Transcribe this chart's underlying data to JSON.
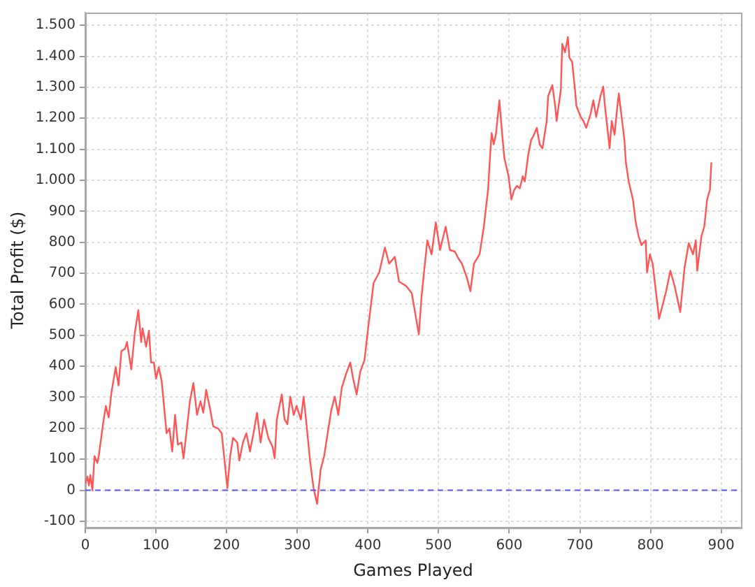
{
  "chart_data": {
    "type": "line",
    "xlabel": "Games Played",
    "ylabel": "Total Profit ($)",
    "x": [
      0,
      3,
      5,
      7,
      10,
      13,
      17,
      19,
      25,
      29,
      33,
      37,
      43,
      47,
      51,
      56,
      59,
      65,
      70,
      75,
      79,
      81,
      86,
      90,
      93,
      97,
      100,
      104,
      108,
      115,
      119,
      123,
      127,
      131,
      136,
      139,
      143,
      148,
      153,
      158,
      163,
      167,
      171,
      177,
      181,
      188,
      193,
      201,
      205,
      209,
      215,
      218,
      223,
      228,
      233,
      238,
      243,
      248,
      253,
      259,
      265,
      268,
      271,
      278,
      282,
      286,
      290,
      295,
      299,
      305,
      309,
      313,
      318,
      323,
      328,
      333,
      338,
      343,
      348,
      353,
      358,
      363,
      369,
      375,
      379,
      384,
      389,
      395,
      401,
      408,
      416,
      424,
      430,
      438,
      444,
      454,
      462,
      472,
      476,
      480,
      484,
      490,
      496,
      502,
      510,
      516,
      523,
      528,
      533,
      540,
      545,
      550,
      558,
      564,
      570,
      573,
      575,
      578,
      581,
      586,
      589,
      593,
      599,
      603,
      607,
      611,
      615,
      619,
      622,
      627,
      631,
      635,
      639,
      643,
      647,
      653,
      655,
      661,
      665,
      667,
      673,
      675,
      679,
      683,
      685,
      689,
      693,
      695,
      701,
      705,
      709,
      715,
      719,
      723,
      729,
      733,
      735,
      742,
      745,
      749,
      753,
      755,
      759,
      763,
      765,
      769,
      775,
      779,
      783,
      787,
      793,
      795,
      799,
      803,
      812,
      822,
      828,
      834,
      842,
      848,
      854,
      860,
      864,
      866,
      872,
      876,
      880,
      884,
      886
    ],
    "series": [
      {
        "color": "#ff5555",
        "values": [
          22,
          44,
          15,
          49,
          0,
          110,
          88,
          110,
          213,
          272,
          235,
          316,
          397,
          338,
          449,
          456,
          478,
          390,
          507,
          581,
          478,
          522,
          463,
          515,
          412,
          412,
          360,
          397,
          353,
          184,
          199,
          125,
          243,
          147,
          154,
          103,
          184,
          287,
          346,
          243,
          287,
          250,
          324,
          257,
          206,
          199,
          184,
          7,
          110,
          169,
          154,
          96,
          154,
          184,
          125,
          184,
          250,
          154,
          228,
          169,
          140,
          103,
          228,
          309,
          228,
          213,
          302,
          243,
          272,
          228,
          302,
          213,
          96,
          7,
          -44,
          66,
          110,
          184,
          257,
          302,
          243,
          331,
          375,
          412,
          360,
          309,
          382,
          419,
          537,
          669,
          703,
          783,
          731,
          753,
          673,
          659,
          636,
          503,
          629,
          717,
          806,
          761,
          864,
          775,
          850,
          775,
          770,
          748,
          731,
          686,
          642,
          731,
          761,
          850,
          969,
          1085,
          1152,
          1116,
          1147,
          1258,
          1174,
          1072,
          1013,
          938,
          969,
          982,
          974,
          1013,
          996,
          1085,
          1130,
          1147,
          1169,
          1116,
          1103,
          1191,
          1271,
          1307,
          1240,
          1191,
          1293,
          1440,
          1413,
          1462,
          1396,
          1382,
          1293,
          1240,
          1205,
          1191,
          1169,
          1213,
          1258,
          1205,
          1271,
          1302,
          1249,
          1103,
          1191,
          1147,
          1240,
          1280,
          1205,
          1130,
          1058,
          996,
          938,
          864,
          820,
          791,
          806,
          703,
          761,
          731,
          553,
          642,
          708,
          659,
          575,
          717,
          797,
          761,
          806,
          708,
          820,
          850,
          938,
          969,
          1058
        ]
      }
    ],
    "xlim": [
      0,
      928
    ],
    "ylim": [
      -121,
      1541
    ],
    "xticks": [
      0,
      100,
      200,
      300,
      400,
      500,
      600,
      700,
      800,
      900
    ],
    "yticks": [
      -100,
      0,
      100,
      200,
      300,
      400,
      500,
      600,
      700,
      800,
      900,
      {
        "value": 1000,
        "label": "1.000"
      },
      {
        "value": 1100,
        "label": "1.100"
      },
      {
        "value": 1200,
        "label": "1.200"
      },
      {
        "value": 1300,
        "label": "1.300"
      },
      {
        "value": 1400,
        "label": "1.400"
      },
      {
        "value": 1500,
        "label": "1.500"
      }
    ],
    "ref_lines": [
      {
        "axis": "y",
        "value": 0,
        "color": "#5555ff",
        "line_style": "dashed"
      }
    ],
    "grid": true,
    "legend": false,
    "marker": "none",
    "line_style": "solid"
  }
}
